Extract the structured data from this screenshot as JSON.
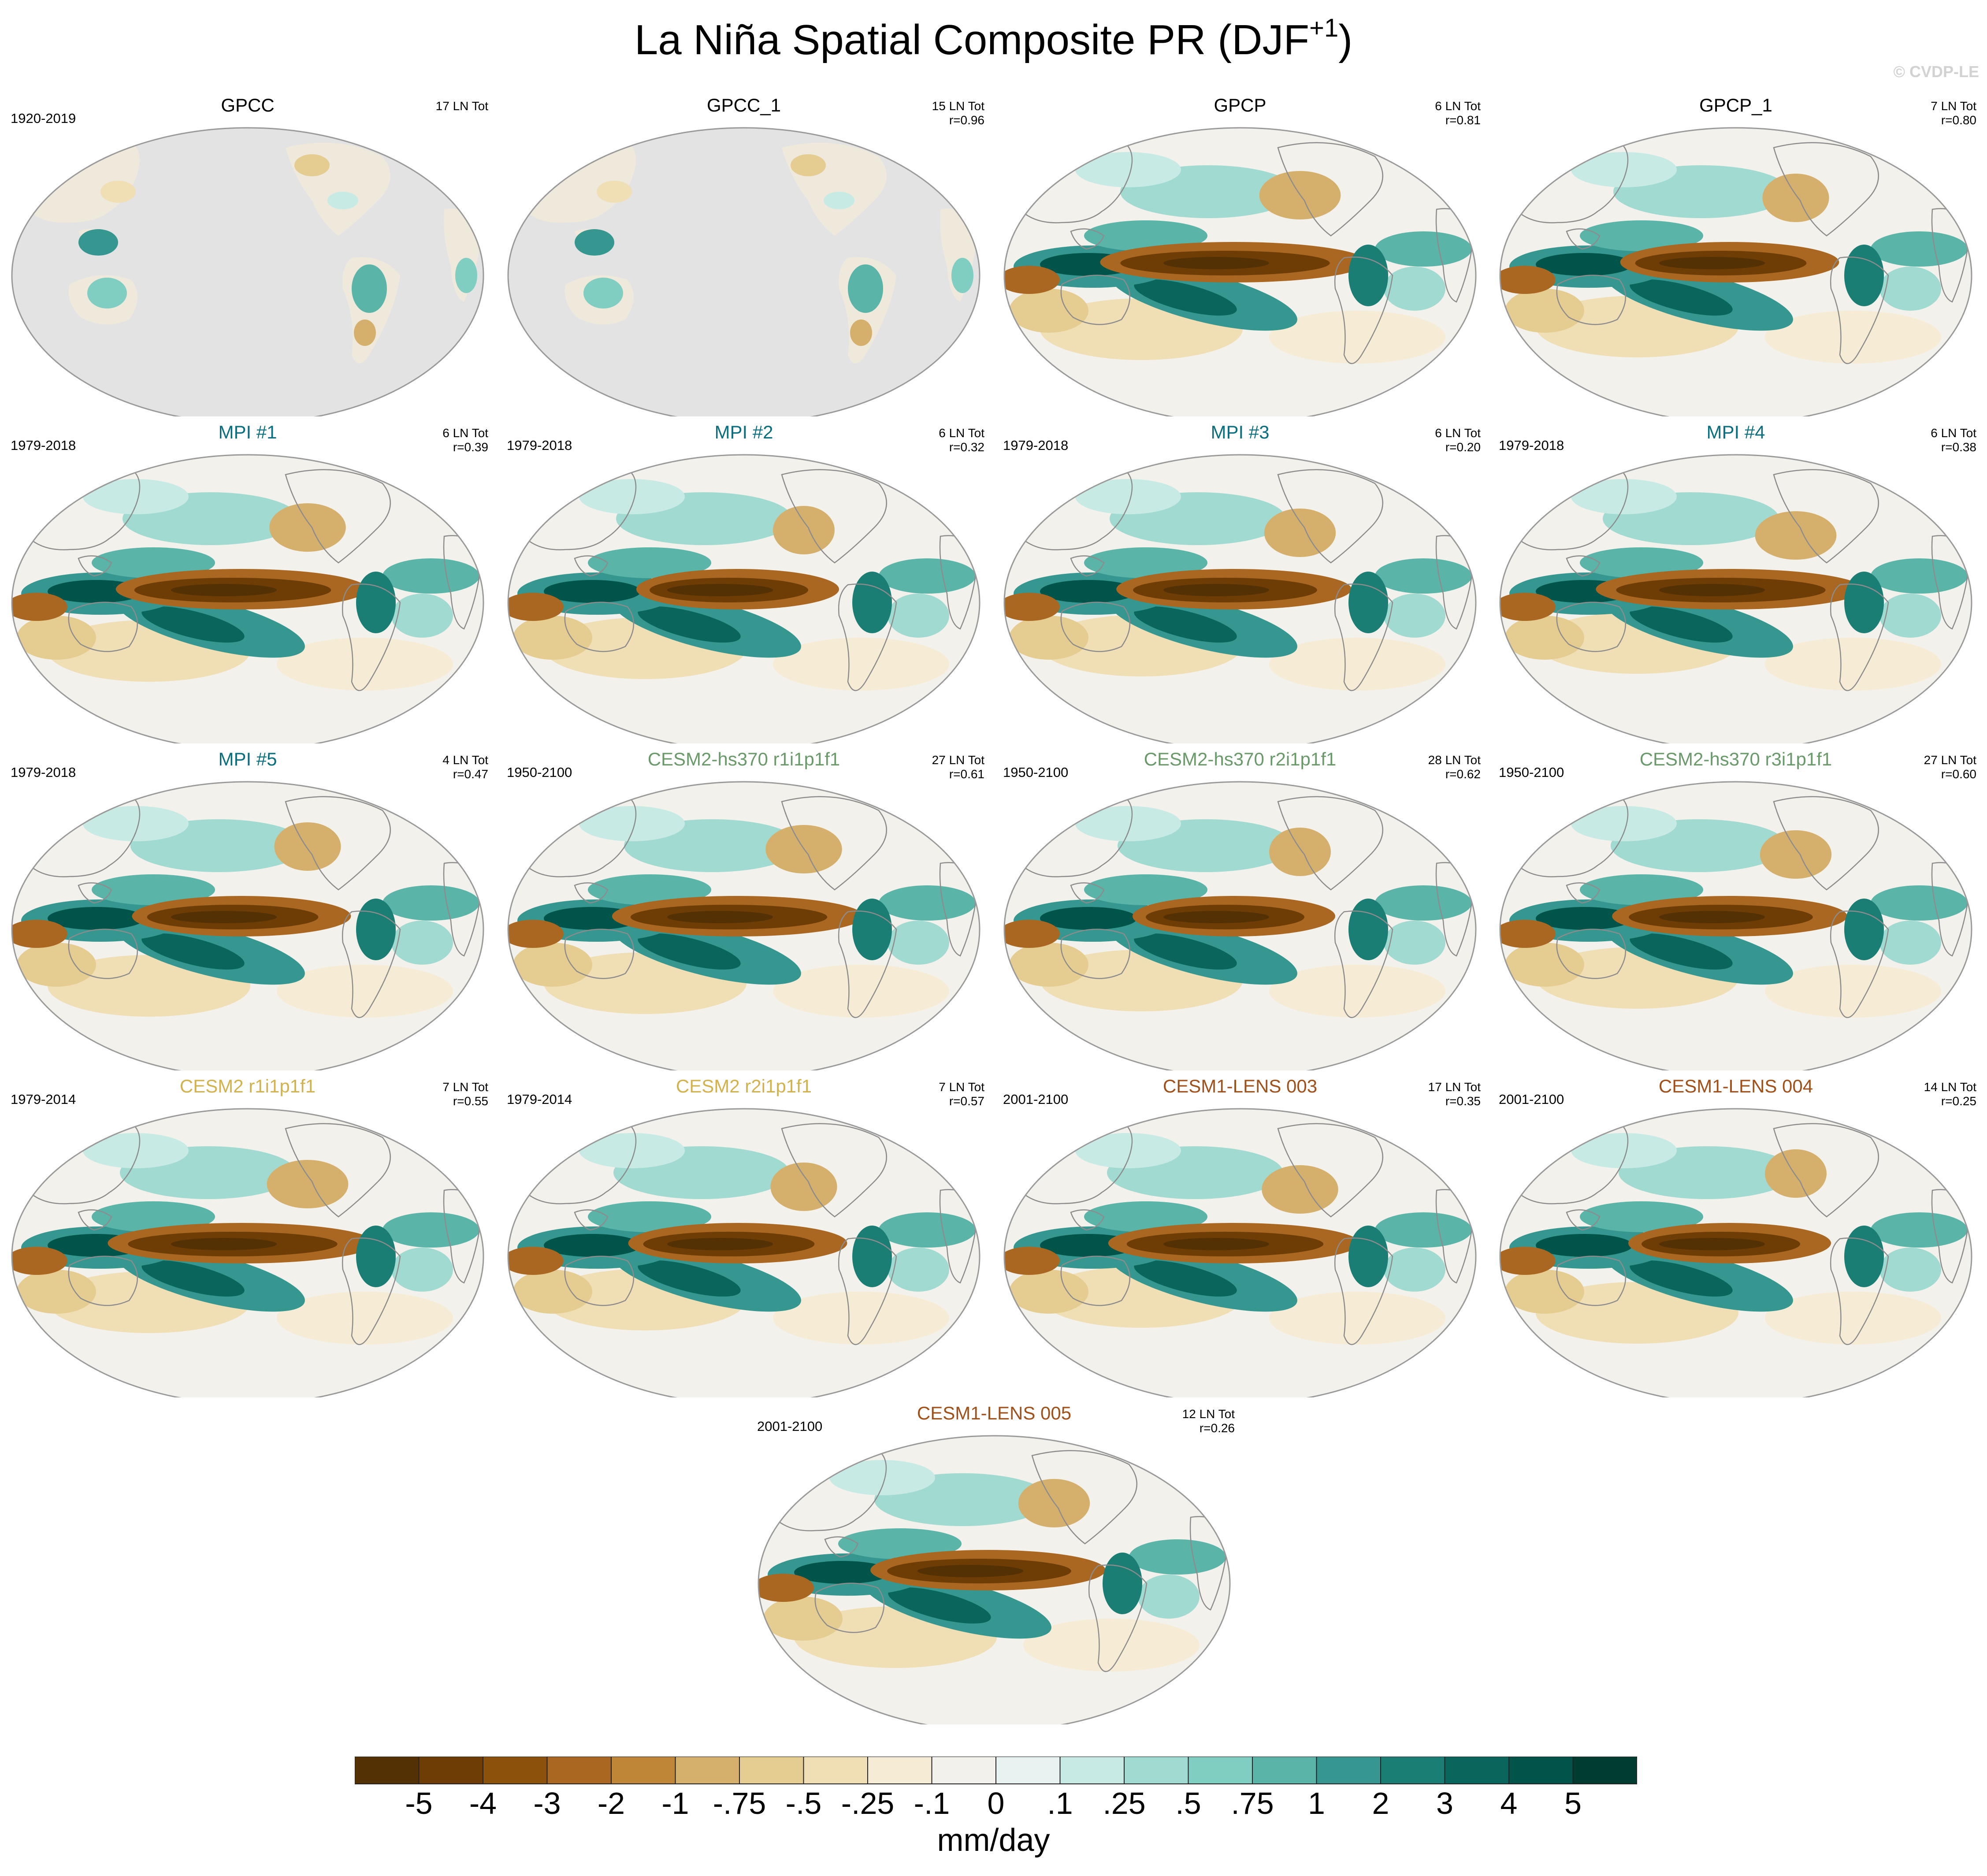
{
  "figure": {
    "title_main": "La Niña Spatial Composite PR (DJF",
    "title_sup": "+1",
    "title_close": ")",
    "watermark": "© CVDP-LE"
  },
  "chart_data": {
    "type": "heatmap",
    "title": "La Niña Spatial Composite PR (DJF+1)",
    "projection": "global Robinson-like map centered on the Pacific",
    "panels": [
      {
        "name": "GPCC",
        "period": "1920-2019",
        "count": "17 LN Tot",
        "corr": "",
        "title_color": "#000000",
        "land_only": true
      },
      {
        "name": "GPCC_1",
        "period": "",
        "count": "15 LN Tot",
        "corr": "r=0.96",
        "title_color": "#000000",
        "land_only": true
      },
      {
        "name": "GPCP",
        "period": "",
        "count": "6 LN Tot",
        "corr": "r=0.81",
        "title_color": "#000000",
        "land_only": false
      },
      {
        "name": "GPCP_1",
        "period": "",
        "count": "7 LN Tot",
        "corr": "r=0.80",
        "title_color": "#000000",
        "land_only": false
      },
      {
        "name": "MPI #1",
        "period": "1979-2018",
        "count": "6 LN Tot",
        "corr": "r=0.39",
        "title_color": "#0a6e7e",
        "land_only": false
      },
      {
        "name": "MPI #2",
        "period": "1979-2018",
        "count": "6 LN Tot",
        "corr": "r=0.32",
        "title_color": "#0a6e7e",
        "land_only": false
      },
      {
        "name": "MPI #3",
        "period": "1979-2018",
        "count": "6 LN Tot",
        "corr": "r=0.20",
        "title_color": "#0a6e7e",
        "land_only": false
      },
      {
        "name": "MPI #4",
        "period": "1979-2018",
        "count": "6 LN Tot",
        "corr": "r=0.38",
        "title_color": "#0a6e7e",
        "land_only": false
      },
      {
        "name": "MPI #5",
        "period": "1979-2018",
        "count": "4 LN Tot",
        "corr": "r=0.47",
        "title_color": "#0a6e7e",
        "land_only": false
      },
      {
        "name": "CESM2-hs370 r1i1p1f1",
        "period": "1950-2100",
        "count": "27 LN Tot",
        "corr": "r=0.61",
        "title_color": "#6a9a6a",
        "land_only": false
      },
      {
        "name": "CESM2-hs370 r2i1p1f1",
        "period": "1950-2100",
        "count": "28 LN Tot",
        "corr": "r=0.62",
        "title_color": "#6a9a6a",
        "land_only": false
      },
      {
        "name": "CESM2-hs370 r3i1p1f1",
        "period": "1950-2100",
        "count": "27 LN Tot",
        "corr": "r=0.60",
        "title_color": "#6a9a6a",
        "land_only": false
      },
      {
        "name": "CESM2 r1i1p1f1",
        "period": "1979-2014",
        "count": "7 LN Tot",
        "corr": "r=0.55",
        "title_color": "#d2b24e",
        "land_only": false
      },
      {
        "name": "CESM2 r2i1p1f1",
        "period": "1979-2014",
        "count": "7 LN Tot",
        "corr": "r=0.57",
        "title_color": "#d2b24e",
        "land_only": false
      },
      {
        "name": "CESM1-LENS 003",
        "period": "2001-2100",
        "count": "17 LN Tot",
        "corr": "r=0.35",
        "title_color": "#a0501a",
        "land_only": false
      },
      {
        "name": "CESM1-LENS 004",
        "period": "2001-2100",
        "count": "14 LN Tot",
        "corr": "r=0.25",
        "title_color": "#a0501a",
        "land_only": false
      },
      {
        "name": "CESM1-LENS 005",
        "period": "2001-2100",
        "count": "12 LN Tot",
        "corr": "r=0.26",
        "title_color": "#a0501a",
        "land_only": false
      }
    ],
    "colorbar": {
      "levels": [
        "-5",
        "-4",
        "-3",
        "-2",
        "-1",
        "-.75",
        "-.5",
        "-.25",
        "-.1",
        "0",
        ".1",
        ".25",
        ".5",
        ".75",
        "1",
        "2",
        "3",
        "4",
        "5"
      ],
      "colors": [
        "#543005",
        "#6e3d06",
        "#8c510a",
        "#a96722",
        "#c08637",
        "#d5b06c",
        "#e5cc90",
        "#f0deb4",
        "#f6ecd6",
        "#f3f1ec",
        "#e8f3f1",
        "#c7eae5",
        "#a0dad0",
        "#80cdc1",
        "#5ab4a8",
        "#35978f",
        "#1b7e74",
        "#0a665c",
        "#01544a",
        "#003c30"
      ],
      "unit": "mm/day"
    }
  }
}
